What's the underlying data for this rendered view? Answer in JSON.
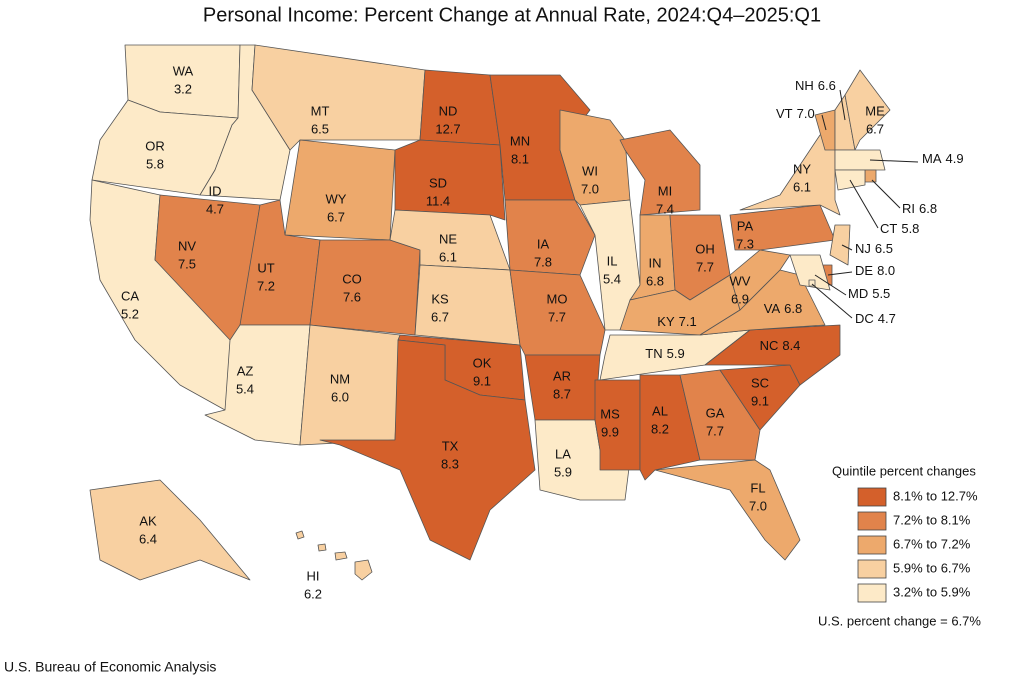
{
  "title": "Personal Income: Percent Change at Annual Rate, 2024:Q4–2025:Q1",
  "regions": [
    {
      "label": "WA",
      "value": "3.2",
      "color": "#fdeac8"
    },
    {
      "label": "OR",
      "value": "5.8",
      "color": "#fdeac8"
    },
    {
      "label": "CA",
      "value": "5.2",
      "color": "#fdeac8"
    },
    {
      "label": "ID",
      "value": "4.7",
      "color": "#fdeac8"
    },
    {
      "label": "NV",
      "value": "7.5",
      "color": "#e1834b"
    },
    {
      "label": "MT",
      "value": "6.5",
      "color": "#f8d0a1"
    },
    {
      "label": "WY",
      "value": "6.7",
      "color": "#eda96c"
    },
    {
      "label": "UT",
      "value": "7.2",
      "color": "#e1834b"
    },
    {
      "label": "AZ",
      "value": "5.4",
      "color": "#fdeac8"
    },
    {
      "label": "CO",
      "value": "7.6",
      "color": "#e1834b"
    },
    {
      "label": "NM",
      "value": "6.0",
      "color": "#f8d0a1"
    },
    {
      "label": "ND",
      "value": "12.7",
      "color": "#d4602b"
    },
    {
      "label": "SD",
      "value": "11.4",
      "color": "#d4602b"
    },
    {
      "label": "NE",
      "value": "6.1",
      "color": "#f8d0a1"
    },
    {
      "label": "KS",
      "value": "6.7",
      "color": "#f8d0a1"
    },
    {
      "label": "OK",
      "value": "9.1",
      "color": "#d4602b"
    },
    {
      "label": "TX",
      "value": "8.3",
      "color": "#d4602b"
    },
    {
      "label": "MN",
      "value": "8.1",
      "color": "#d4602b"
    },
    {
      "label": "IA",
      "value": "7.8",
      "color": "#e1834b"
    },
    {
      "label": "MO",
      "value": "7.7",
      "color": "#e1834b"
    },
    {
      "label": "AR",
      "value": "8.7",
      "color": "#d4602b"
    },
    {
      "label": "LA",
      "value": "5.9",
      "color": "#fdeac8"
    },
    {
      "label": "WI",
      "value": "7.0",
      "color": "#eda96c"
    },
    {
      "label": "IL",
      "value": "5.4",
      "color": "#fdeac8"
    },
    {
      "label": "MI",
      "value": "7.4",
      "color": "#e1834b"
    },
    {
      "label": "IN",
      "value": "6.8",
      "color": "#eda96c"
    },
    {
      "label": "OH",
      "value": "7.7",
      "color": "#e1834b"
    },
    {
      "label": "KY",
      "value": "7.1",
      "color": "#eda96c"
    },
    {
      "label": "TN",
      "value": "5.9",
      "color": "#fdeac8"
    },
    {
      "label": "MS",
      "value": "9.9",
      "color": "#d4602b"
    },
    {
      "label": "AL",
      "value": "8.2",
      "color": "#d4602b"
    },
    {
      "label": "GA",
      "value": "7.7",
      "color": "#e1834b"
    },
    {
      "label": "FL",
      "value": "7.0",
      "color": "#eda96c"
    },
    {
      "label": "SC",
      "value": "9.1",
      "color": "#d4602b"
    },
    {
      "label": "NC",
      "value": "8.4",
      "color": "#d4602b"
    },
    {
      "label": "VA",
      "value": "6.8",
      "color": "#eda96c"
    },
    {
      "label": "WV",
      "value": "6.9",
      "color": "#eda96c"
    },
    {
      "label": "PA",
      "value": "7.3",
      "color": "#e1834b"
    },
    {
      "label": "NY",
      "value": "6.1",
      "color": "#f8d0a1"
    },
    {
      "label": "VT",
      "value": "7.0",
      "color": "#eda96c"
    },
    {
      "label": "NH",
      "value": "6.6",
      "color": "#f8d0a1"
    },
    {
      "label": "ME",
      "value": "6.7",
      "color": "#f8d0a1"
    },
    {
      "label": "MA",
      "value": "4.9",
      "color": "#fdeac8"
    },
    {
      "label": "RI",
      "value": "6.8",
      "color": "#eda96c"
    },
    {
      "label": "CT",
      "value": "5.8",
      "color": "#fdeac8"
    },
    {
      "label": "NJ",
      "value": "6.5",
      "color": "#f8d0a1"
    },
    {
      "label": "DE",
      "value": "8.0",
      "color": "#e1834b"
    },
    {
      "label": "MD",
      "value": "5.5",
      "color": "#fdeac8"
    },
    {
      "label": "DC",
      "value": "4.7",
      "color": "#fdeac8"
    },
    {
      "label": "AK",
      "value": "6.4",
      "color": "#f8d0a1"
    },
    {
      "label": "HI",
      "value": "6.2",
      "color": "#f8d0a1"
    }
  ],
  "legend": {
    "title": "Quintile percent changes",
    "items": [
      {
        "label": "8.1% to 12.7%",
        "color": "#d4602b"
      },
      {
        "label": "7.2% to 8.1%",
        "color": "#e1834b"
      },
      {
        "label": "6.7% to 7.2%",
        "color": "#eda96c"
      },
      {
        "label": "5.9% to 6.7%",
        "color": "#f8d0a1"
      },
      {
        "label": "3.2% to 5.9%",
        "color": "#fdeac8"
      }
    ]
  },
  "note": "U.S. percent change = 6.7%",
  "source": "U.S. Bureau of Economic Analysis"
}
